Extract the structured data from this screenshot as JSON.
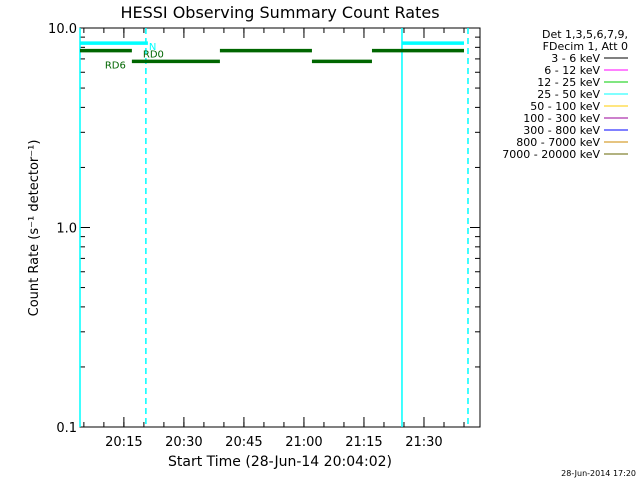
{
  "chart_data": {
    "type": "line",
    "title": "HESSI Observing Summary Count Rates",
    "xlabel": "Start Time (28-Jun-14 20:04:02)",
    "ylabel": "Count Rate (s⁻¹ detector⁻¹)",
    "yscale": "log",
    "ylim": [
      0.1,
      10.0
    ],
    "xlim": [
      "20:04:02",
      "21:44:00"
    ],
    "y_tick_labels": [
      "0.1",
      "1.0",
      "10.0"
    ],
    "x_tick_labels": [
      "20:15",
      "20:30",
      "20:45",
      "21:00",
      "21:15",
      "21:30"
    ],
    "legend": {
      "placement": "right",
      "header": [
        "Det 1,3,5,6,7,9,",
        "FDecim 1, Att 0"
      ],
      "entries": [
        {
          "label": "3 - 6 keV",
          "color": "#000000"
        },
        {
          "label": "6 - 12 keV",
          "color": "#ff00ff"
        },
        {
          "label": "12 - 25 keV",
          "color": "#00cc00"
        },
        {
          "label": "25 - 50 keV",
          "color": "#00ffff"
        },
        {
          "label": "50 - 100 keV",
          "color": "#ffcc00"
        },
        {
          "label": "100 - 300 keV",
          "color": "#990099"
        },
        {
          "label": "300 - 800 keV",
          "color": "#0000ff"
        },
        {
          "label": "800 - 7000 keV",
          "color": "#cc8800"
        },
        {
          "label": "7000 - 20000 keV",
          "color": "#666600"
        }
      ]
    },
    "series": [
      {
        "color": "#00ffff",
        "segments": [
          {
            "x": [
              "20:04:02",
              "20:21:00"
            ],
            "y": 8.4
          },
          {
            "x": [
              "21:24:30",
              "21:40:00"
            ],
            "y": 8.4
          }
        ]
      },
      {
        "color": "#006600",
        "segments": [
          {
            "x": [
              "20:04:02",
              "20:17:00"
            ],
            "y": 7.7
          },
          {
            "x": [
              "20:17:00",
              "20:39:00"
            ],
            "y": 6.8
          },
          {
            "x": [
              "20:39:00",
              "21:02:00"
            ],
            "y": 7.7
          },
          {
            "x": [
              "21:02:00",
              "21:17:00"
            ],
            "y": 6.8
          },
          {
            "x": [
              "21:17:00",
              "21:40:00"
            ],
            "y": 7.7
          }
        ]
      }
    ],
    "vertical_lines": [
      {
        "x": "20:04:02",
        "style": "solid",
        "color": "#00ffff"
      },
      {
        "x": "20:20:30",
        "style": "dashed",
        "color": "#00ffff"
      },
      {
        "x": "21:24:30",
        "style": "solid",
        "color": "#00ffff"
      },
      {
        "x": "21:41:00",
        "style": "dashed",
        "color": "#00ffff"
      }
    ],
    "annotations": [
      {
        "text": "N",
        "x": "20:21:00",
        "y": 8.4,
        "color": "#00ffff"
      },
      {
        "text": "RD0",
        "x": "20:19:30",
        "y": 7.7,
        "color": "#006600"
      },
      {
        "text": "RD6",
        "x": "20:10:00",
        "y": 6.8,
        "color": "#006600"
      }
    ],
    "footer_date": "28-Jun-2014 17:20"
  }
}
